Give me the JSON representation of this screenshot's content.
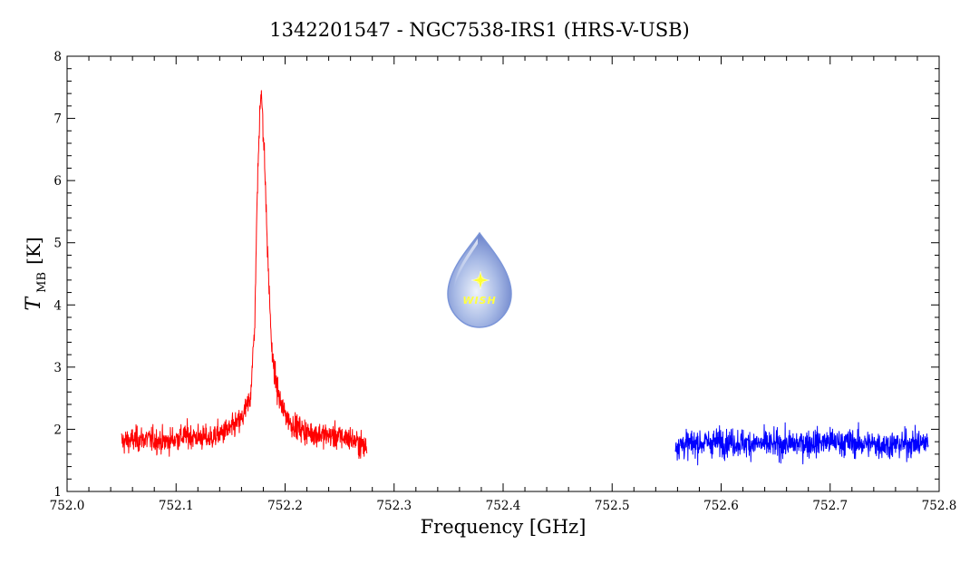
{
  "chart_data": {
    "type": "line",
    "title": "1342201547 - NGC7538-IRS1 (HRS-V-USB)",
    "xlabel": "Frequency [GHz]",
    "ylabel": {
      "main": "T",
      "sub": "MB",
      "unit": "[K]"
    },
    "xlim": [
      752.0,
      752.8
    ],
    "ylim": [
      1,
      8
    ],
    "x_ticks": [
      "752.0",
      "752.1",
      "752.2",
      "752.3",
      "752.4",
      "752.5",
      "752.6",
      "752.7",
      "752.8"
    ],
    "y_ticks": [
      "1",
      "2",
      "3",
      "4",
      "5",
      "6",
      "7",
      "8"
    ],
    "grid": false,
    "legend": "none",
    "series": [
      {
        "color": "#ff0000",
        "x_range": [
          752.05,
          752.275
        ],
        "baseline_K": 1.85,
        "noise_rms_K": 0.18,
        "line_peak": {
          "x": 752.178,
          "y": 7.35
        },
        "points": [
          [
            752.05,
            1.8
          ],
          [
            752.07,
            1.85
          ],
          [
            752.09,
            1.8
          ],
          [
            752.11,
            1.9
          ],
          [
            752.13,
            1.85
          ],
          [
            752.15,
            2.0
          ],
          [
            752.16,
            2.15
          ],
          [
            752.168,
            2.5
          ],
          [
            752.172,
            3.6
          ],
          [
            752.175,
            6.2
          ],
          [
            752.178,
            7.35
          ],
          [
            752.181,
            6.4
          ],
          [
            752.184,
            4.8
          ],
          [
            752.188,
            3.2
          ],
          [
            752.192,
            2.7
          ],
          [
            752.197,
            2.35
          ],
          [
            752.205,
            2.1
          ],
          [
            752.22,
            1.95
          ],
          [
            752.24,
            1.9
          ],
          [
            752.26,
            1.85
          ],
          [
            752.275,
            1.7
          ]
        ]
      },
      {
        "color": "#0000ff",
        "x_range": [
          752.558,
          752.79
        ],
        "baseline_K": 1.78,
        "noise_rms_K": 0.2,
        "points": [
          [
            752.558,
            1.75
          ],
          [
            752.6,
            1.8
          ],
          [
            752.65,
            1.75
          ],
          [
            752.7,
            1.8
          ],
          [
            752.75,
            1.75
          ],
          [
            752.79,
            1.78
          ]
        ]
      }
    ]
  },
  "logo": {
    "name": "wish-logo",
    "text": "WISH",
    "color": "#7b95d8"
  }
}
